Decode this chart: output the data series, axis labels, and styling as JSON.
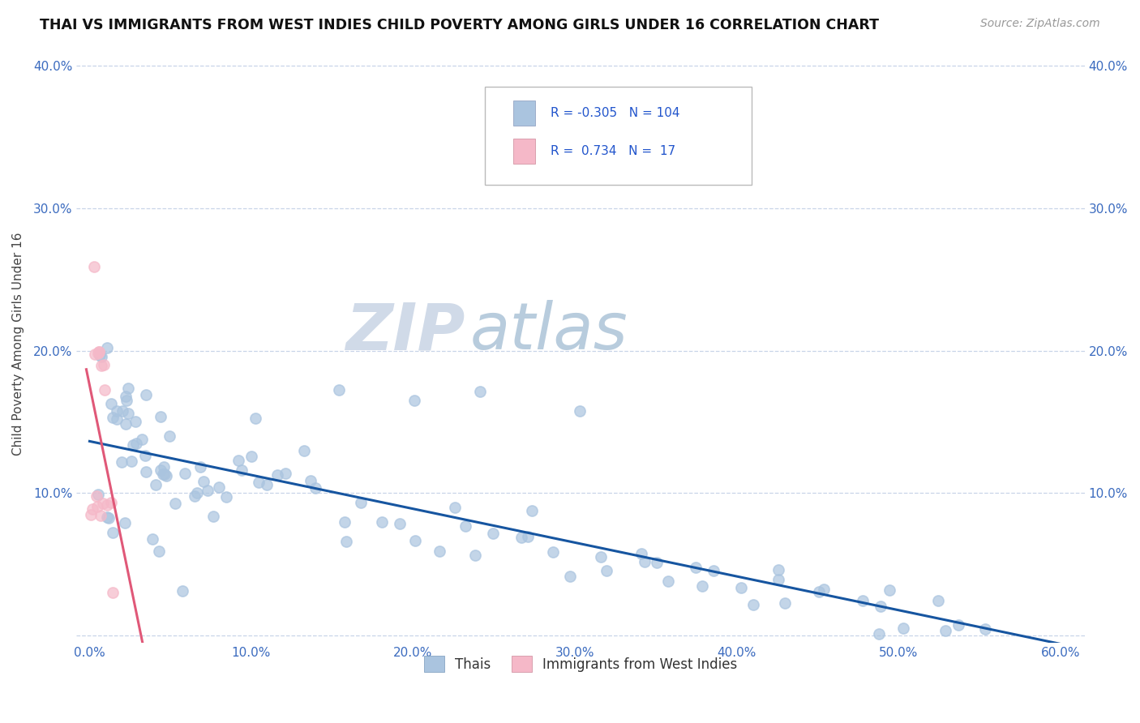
{
  "title": "THAI VS IMMIGRANTS FROM WEST INDIES CHILD POVERTY AMONG GIRLS UNDER 16 CORRELATION CHART",
  "source": "Source: ZipAtlas.com",
  "ylabel": "Child Poverty Among Girls Under 16",
  "xlim": [
    0.0,
    0.6
  ],
  "ylim": [
    0.0,
    0.4
  ],
  "xticks": [
    0.0,
    0.1,
    0.2,
    0.3,
    0.4,
    0.5,
    0.6
  ],
  "xticklabels": [
    "0.0%",
    "10.0%",
    "20.0%",
    "30.0%",
    "40.0%",
    "50.0%",
    "60.0%"
  ],
  "yticks": [
    0.0,
    0.1,
    0.2,
    0.3,
    0.4
  ],
  "yticklabels": [
    "",
    "10.0%",
    "20.0%",
    "30.0%",
    "40.0%"
  ],
  "thai_color": "#aac4df",
  "west_indies_color": "#f5b8c8",
  "thai_line_color": "#1655a0",
  "west_indies_line_color": "#e05878",
  "thai_R": -0.305,
  "thai_N": 104,
  "west_indies_R": 0.734,
  "west_indies_N": 17,
  "watermark_zip": "ZIP",
  "watermark_atlas": "atlas",
  "legend_label_thai": "Thais",
  "legend_label_wi": "Immigrants from West Indies",
  "thai_x": [
    0.005,
    0.008,
    0.01,
    0.012,
    0.014,
    0.016,
    0.018,
    0.02,
    0.022,
    0.024,
    0.026,
    0.028,
    0.03,
    0.032,
    0.034,
    0.036,
    0.038,
    0.04,
    0.042,
    0.044,
    0.046,
    0.048,
    0.05,
    0.055,
    0.06,
    0.065,
    0.07,
    0.075,
    0.08,
    0.085,
    0.09,
    0.095,
    0.1,
    0.105,
    0.11,
    0.115,
    0.12,
    0.13,
    0.14,
    0.15,
    0.16,
    0.17,
    0.18,
    0.19,
    0.2,
    0.21,
    0.22,
    0.23,
    0.24,
    0.25,
    0.26,
    0.27,
    0.28,
    0.29,
    0.3,
    0.31,
    0.32,
    0.33,
    0.34,
    0.35,
    0.36,
    0.37,
    0.38,
    0.39,
    0.4,
    0.41,
    0.42,
    0.43,
    0.44,
    0.45,
    0.46,
    0.47,
    0.48,
    0.49,
    0.5,
    0.51,
    0.52,
    0.53,
    0.54,
    0.555,
    0.01,
    0.015,
    0.02,
    0.025,
    0.03,
    0.04,
    0.05,
    0.06,
    0.07,
    0.08,
    0.005,
    0.008,
    0.012,
    0.018,
    0.025,
    0.035,
    0.045,
    0.06,
    0.1,
    0.13,
    0.15,
    0.2,
    0.25,
    0.3
  ],
  "thai_y": [
    0.19,
    0.185,
    0.178,
    0.172,
    0.168,
    0.165,
    0.162,
    0.158,
    0.155,
    0.152,
    0.15,
    0.148,
    0.145,
    0.142,
    0.14,
    0.138,
    0.136,
    0.133,
    0.131,
    0.129,
    0.127,
    0.125,
    0.123,
    0.12,
    0.118,
    0.115,
    0.113,
    0.111,
    0.109,
    0.107,
    0.105,
    0.103,
    0.101,
    0.099,
    0.097,
    0.095,
    0.093,
    0.091,
    0.089,
    0.087,
    0.085,
    0.083,
    0.081,
    0.079,
    0.077,
    0.075,
    0.073,
    0.071,
    0.069,
    0.067,
    0.065,
    0.063,
    0.061,
    0.059,
    0.057,
    0.055,
    0.053,
    0.051,
    0.049,
    0.047,
    0.045,
    0.043,
    0.041,
    0.039,
    0.037,
    0.035,
    0.033,
    0.031,
    0.029,
    0.027,
    0.025,
    0.023,
    0.021,
    0.019,
    0.017,
    0.015,
    0.013,
    0.011,
    0.009,
    0.007,
    0.17,
    0.16,
    0.15,
    0.14,
    0.13,
    0.12,
    0.11,
    0.1,
    0.09,
    0.08,
    0.095,
    0.088,
    0.082,
    0.075,
    0.068,
    0.06,
    0.053,
    0.045,
    0.16,
    0.15,
    0.17,
    0.165,
    0.16,
    0.155
  ],
  "wi_x": [
    0.001,
    0.002,
    0.003,
    0.004,
    0.004,
    0.005,
    0.005,
    0.006,
    0.007,
    0.007,
    0.008,
    0.008,
    0.009,
    0.01,
    0.011,
    0.012,
    0.015
  ],
  "wi_y": [
    0.085,
    0.1,
    0.09,
    0.255,
    0.195,
    0.2,
    0.095,
    0.2,
    0.195,
    0.093,
    0.19,
    0.093,
    0.185,
    0.18,
    0.098,
    0.095,
    0.03
  ]
}
